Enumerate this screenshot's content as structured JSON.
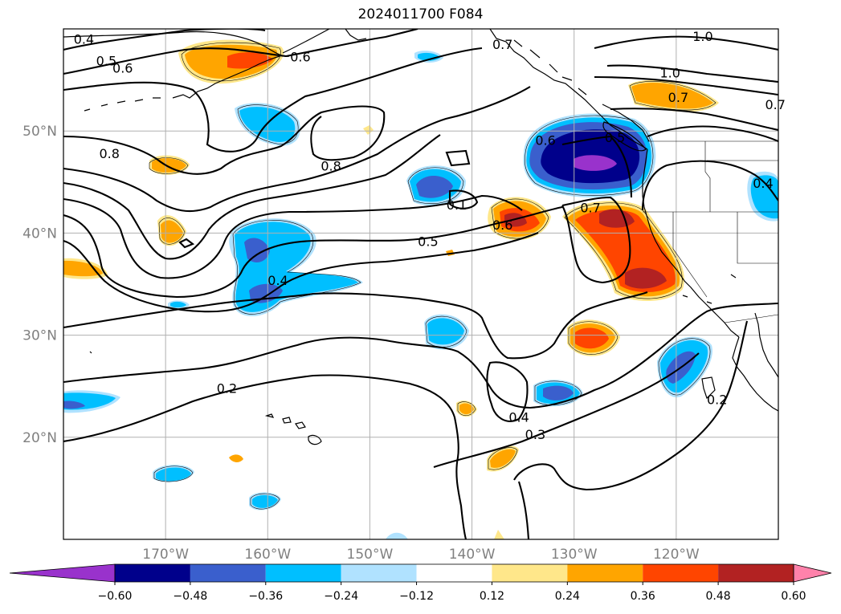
{
  "title": "2024011700 F084",
  "map": {
    "projection": "plate-carree",
    "lon_range": [
      -180,
      -110
    ],
    "lat_range": [
      10,
      60
    ],
    "grid": true,
    "lon_ticks": [
      {
        "value": -170,
        "label": "170°W"
      },
      {
        "value": -160,
        "label": "160°W"
      },
      {
        "value": -150,
        "label": "150°W"
      },
      {
        "value": -140,
        "label": "140°W"
      },
      {
        "value": -130,
        "label": "130°W"
      },
      {
        "value": -120,
        "label": "120°W"
      }
    ],
    "lat_ticks": [
      {
        "value": 50,
        "label": "50°N"
      },
      {
        "value": 40,
        "label": "40°N"
      },
      {
        "value": 30,
        "label": "30°N"
      },
      {
        "value": 20,
        "label": "20°N"
      }
    ],
    "contour_labels": [
      {
        "text": "0.4",
        "lon": -178.0,
        "lat": 59.0
      },
      {
        "text": "0.5",
        "lon": -175.8,
        "lat": 56.9
      },
      {
        "text": "0.6",
        "lon": -174.2,
        "lat": 56.2
      },
      {
        "text": "0.6",
        "lon": -156.8,
        "lat": 57.3
      },
      {
        "text": "0.7",
        "lon": -137.0,
        "lat": 58.5
      },
      {
        "text": "1.0",
        "lon": -117.4,
        "lat": 59.3
      },
      {
        "text": "1.0",
        "lon": -120.6,
        "lat": 55.7
      },
      {
        "text": "0.7",
        "lon": -119.8,
        "lat": 53.3
      },
      {
        "text": "0.7",
        "lon": -110.3,
        "lat": 52.6
      },
      {
        "text": "0.8",
        "lon": -175.5,
        "lat": 47.8
      },
      {
        "text": "0.8",
        "lon": -153.8,
        "lat": 46.6
      },
      {
        "text": "0.6",
        "lon": -132.8,
        "lat": 49.1
      },
      {
        "text": "0.5",
        "lon": -126.0,
        "lat": 49.4
      },
      {
        "text": "0.1",
        "lon": -141.5,
        "lat": 42.8
      },
      {
        "text": "0.6",
        "lon": -137.0,
        "lat": 40.8
      },
      {
        "text": "0.7",
        "lon": -128.4,
        "lat": 42.5
      },
      {
        "text": "0.4",
        "lon": -111.5,
        "lat": 44.9
      },
      {
        "text": "0.5",
        "lon": -144.3,
        "lat": 39.2
      },
      {
        "text": "0.4",
        "lon": -159.0,
        "lat": 35.4
      },
      {
        "text": "0.2",
        "lon": -164.0,
        "lat": 24.8
      },
      {
        "text": "0.4",
        "lon": -135.4,
        "lat": 22.0
      },
      {
        "text": "0.3",
        "lon": -133.8,
        "lat": 20.3
      },
      {
        "text": "0.2",
        "lon": -116.0,
        "lat": 23.7
      }
    ]
  },
  "colorbar": {
    "extend": "both",
    "boundaries": [
      -0.6,
      -0.48,
      -0.36,
      -0.24,
      -0.12,
      0.12,
      0.24,
      0.36,
      0.48,
      0.6
    ],
    "tick_labels": [
      "−0.60",
      "−0.48",
      "−0.36",
      "−0.24",
      "−0.12",
      "0.12",
      "0.24",
      "0.36",
      "0.48",
      "0.60"
    ],
    "colors": [
      "#9932cc",
      "#00008b",
      "#3a5fcd",
      "#00bfff",
      "#b0e2ff",
      "#ffffff",
      "#ffe78a",
      "#ffa500",
      "#ff4500",
      "#b22222",
      "#ff82ab"
    ]
  }
}
